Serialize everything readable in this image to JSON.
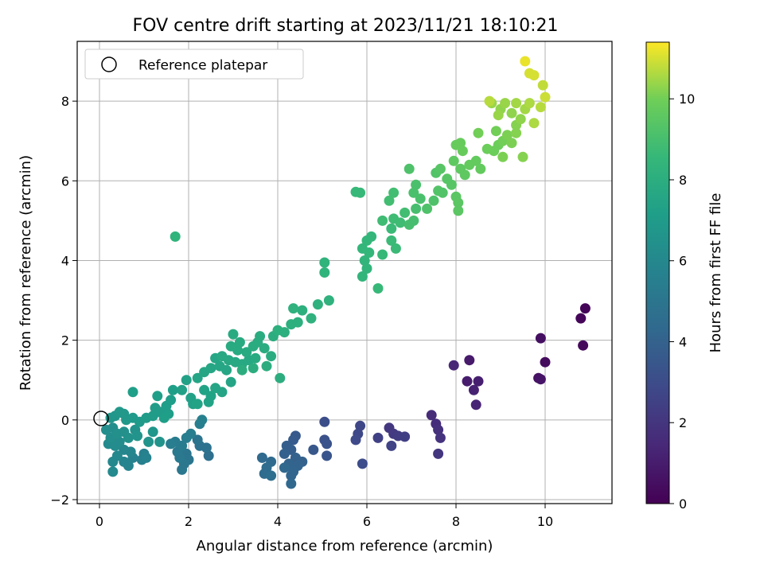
{
  "chart_data": {
    "type": "scatter",
    "title": "FOV centre drift starting at 2023/11/21 18:10:21",
    "xlabel": "Angular distance from reference (arcmin)",
    "ylabel": "Rotation from reference (arcmin)",
    "xlim": [
      -0.5,
      11.5
    ],
    "ylim": [
      -2.1,
      9.5
    ],
    "xticks": [
      "0",
      "2",
      "4",
      "6",
      "8",
      "10"
    ],
    "yticks": [
      "−2",
      "0",
      "2",
      "4",
      "6",
      "8"
    ],
    "grid": true,
    "legend": {
      "position": "top-left",
      "entries": [
        "Reference platepar"
      ]
    },
    "reference_point": {
      "x": 0,
      "y": 0
    },
    "colorbar": {
      "label": "Hours from first FF file",
      "range": [
        0,
        11.4
      ],
      "ticks": [
        "0",
        "2",
        "4",
        "6",
        "8",
        "10"
      ],
      "colormap": "viridis"
    },
    "series": [
      {
        "points": [
          [
            10.9,
            2.8,
            0.1
          ],
          [
            10.8,
            2.55,
            0.2
          ],
          [
            10.85,
            1.87,
            0.3
          ],
          [
            10.0,
            1.45,
            0.4
          ],
          [
            9.9,
            2.05,
            0.5
          ],
          [
            9.85,
            1.05,
            0.6
          ],
          [
            9.9,
            1.02,
            0.7
          ],
          [
            8.3,
            1.5,
            0.9
          ],
          [
            8.25,
            0.97,
            1.0
          ],
          [
            8.5,
            0.97,
            1.1
          ],
          [
            8.4,
            0.75,
            1.2
          ],
          [
            8.45,
            0.38,
            1.3
          ],
          [
            7.95,
            1.37,
            1.4
          ],
          [
            7.45,
            0.12,
            1.6
          ],
          [
            7.55,
            -0.1,
            1.7
          ],
          [
            7.6,
            -0.25,
            1.8
          ],
          [
            7.65,
            -0.45,
            1.9
          ],
          [
            7.6,
            -0.85,
            2.0
          ],
          [
            6.5,
            -0.2,
            2.1
          ],
          [
            6.6,
            -0.35,
            2.2
          ],
          [
            6.7,
            -0.4,
            2.3
          ],
          [
            6.85,
            -0.42,
            2.4
          ],
          [
            6.25,
            -0.45,
            2.5
          ],
          [
            6.55,
            -0.65,
            2.6
          ],
          [
            5.85,
            -0.15,
            2.7
          ],
          [
            5.8,
            -0.35,
            2.8
          ],
          [
            5.75,
            -0.5,
            2.9
          ],
          [
            5.9,
            -1.1,
            3.0
          ],
          [
            5.05,
            -0.05,
            3.1
          ],
          [
            5.05,
            -0.5,
            3.2
          ],
          [
            5.1,
            -0.6,
            3.3
          ],
          [
            5.1,
            -0.9,
            3.4
          ],
          [
            4.8,
            -0.75,
            3.5
          ],
          [
            4.4,
            -0.4,
            3.6
          ],
          [
            4.35,
            -0.5,
            3.7
          ],
          [
            4.2,
            -0.65,
            3.8
          ],
          [
            4.3,
            -0.75,
            3.8
          ],
          [
            4.15,
            -0.85,
            3.9
          ],
          [
            4.55,
            -1.05,
            4.0
          ],
          [
            4.4,
            -0.95,
            4.0
          ],
          [
            4.25,
            -1.1,
            4.1
          ],
          [
            4.45,
            -1.15,
            4.1
          ],
          [
            4.35,
            -1.3,
            4.2
          ],
          [
            4.3,
            -1.4,
            4.2
          ],
          [
            4.3,
            -1.6,
            4.3
          ],
          [
            4.15,
            -1.2,
            4.3
          ],
          [
            3.85,
            -1.05,
            4.4
          ],
          [
            3.65,
            -0.95,
            4.4
          ],
          [
            3.75,
            -1.2,
            4.5
          ],
          [
            3.7,
            -1.35,
            4.5
          ],
          [
            3.85,
            -1.4,
            4.6
          ],
          [
            2.45,
            -0.9,
            4.7
          ],
          [
            2.4,
            -0.7,
            4.8
          ],
          [
            2.25,
            -0.65,
            4.8
          ],
          [
            2.2,
            -0.5,
            4.9
          ],
          [
            1.95,
            -0.85,
            5.0
          ],
          [
            2.0,
            -1.0,
            5.0
          ],
          [
            1.9,
            -1.1,
            5.1
          ],
          [
            1.85,
            -1.25,
            5.1
          ],
          [
            1.8,
            -0.95,
            5.2
          ],
          [
            1.75,
            -0.8,
            5.2
          ],
          [
            1.85,
            -0.65,
            5.3
          ],
          [
            1.7,
            -0.55,
            5.3
          ],
          [
            1.6,
            -0.6,
            5.4
          ],
          [
            1.95,
            -0.45,
            5.4
          ],
          [
            2.05,
            -0.35,
            5.5
          ],
          [
            2.25,
            -0.1,
            5.5
          ],
          [
            2.3,
            0.0,
            5.6
          ],
          [
            1.0,
            -0.85,
            5.6
          ],
          [
            0.95,
            -1.0,
            5.6
          ],
          [
            1.05,
            -0.95,
            5.7
          ],
          [
            0.75,
            -0.95,
            5.7
          ],
          [
            0.65,
            -1.15,
            5.8
          ],
          [
            0.55,
            -1.05,
            5.8
          ],
          [
            0.7,
            -0.8,
            5.9
          ],
          [
            0.55,
            -0.75,
            5.9
          ],
          [
            0.4,
            -0.9,
            6.0
          ],
          [
            0.3,
            -1.05,
            6.0
          ],
          [
            0.3,
            -1.3,
            6.1
          ],
          [
            0.2,
            -0.6,
            6.1
          ],
          [
            0.35,
            -0.65,
            6.2
          ],
          [
            0.45,
            -0.55,
            6.2
          ],
          [
            0.25,
            -0.45,
            6.3
          ],
          [
            0.15,
            -0.25,
            6.3
          ],
          [
            0.3,
            -0.2,
            6.3
          ],
          [
            0.4,
            -0.35,
            6.4
          ],
          [
            0.55,
            -0.3,
            6.4
          ],
          [
            0.65,
            -0.45,
            6.5
          ],
          [
            0.8,
            -0.25,
            6.5
          ],
          [
            0.85,
            -0.4,
            6.6
          ],
          [
            1.1,
            -0.55,
            6.6
          ],
          [
            1.35,
            -0.55,
            6.6
          ],
          [
            1.2,
            -0.3,
            6.7
          ],
          [
            0.25,
            0.05,
            6.7
          ],
          [
            0.35,
            0.1,
            6.7
          ],
          [
            0.45,
            0.2,
            6.8
          ],
          [
            0.55,
            0.15,
            6.8
          ],
          [
            0.6,
            0.0,
            6.8
          ],
          [
            0.75,
            0.05,
            6.9
          ],
          [
            0.9,
            -0.05,
            6.9
          ],
          [
            1.05,
            0.05,
            7.0
          ],
          [
            1.2,
            0.1,
            7.0
          ],
          [
            1.25,
            0.3,
            7.0
          ],
          [
            1.35,
            0.2,
            7.0
          ],
          [
            1.5,
            0.35,
            7.1
          ],
          [
            1.6,
            0.5,
            7.1
          ],
          [
            1.55,
            0.15,
            7.1
          ],
          [
            1.45,
            0.05,
            7.2
          ],
          [
            1.3,
            0.6,
            7.2
          ],
          [
            0.75,
            0.7,
            7.2
          ],
          [
            1.65,
            0.75,
            7.2
          ],
          [
            1.85,
            0.75,
            7.3
          ],
          [
            1.95,
            1.0,
            7.3
          ],
          [
            2.05,
            0.55,
            7.3
          ],
          [
            2.1,
            0.4,
            7.3
          ],
          [
            2.2,
            0.4,
            7.4
          ],
          [
            2.35,
            0.75,
            7.4
          ],
          [
            2.5,
            0.6,
            7.4
          ],
          [
            2.45,
            0.45,
            7.4
          ],
          [
            2.6,
            0.8,
            7.5
          ],
          [
            2.75,
            0.7,
            7.5
          ],
          [
            2.95,
            0.95,
            7.5
          ],
          [
            2.2,
            1.05,
            7.5
          ],
          [
            2.35,
            1.2,
            7.6
          ],
          [
            2.5,
            1.3,
            7.6
          ],
          [
            2.7,
            1.35,
            7.6
          ],
          [
            2.85,
            1.25,
            7.6
          ],
          [
            2.6,
            1.55,
            7.6
          ],
          [
            2.75,
            1.6,
            7.7
          ],
          [
            2.9,
            1.5,
            7.7
          ],
          [
            3.05,
            1.45,
            7.7
          ],
          [
            3.2,
            1.4,
            7.7
          ],
          [
            3.35,
            1.5,
            7.7
          ],
          [
            3.5,
            1.55,
            7.8
          ],
          [
            3.3,
            1.7,
            7.8
          ],
          [
            3.1,
            1.75,
            7.8
          ],
          [
            2.95,
            1.85,
            7.8
          ],
          [
            3.15,
            1.95,
            7.8
          ],
          [
            3.0,
            2.15,
            7.8
          ],
          [
            3.45,
            1.85,
            7.9
          ],
          [
            3.55,
            1.95,
            7.9
          ],
          [
            3.7,
            1.8,
            7.9
          ],
          [
            3.6,
            2.1,
            7.9
          ],
          [
            3.85,
            1.6,
            7.9
          ],
          [
            3.45,
            1.3,
            8.0
          ],
          [
            3.2,
            1.25,
            8.0
          ],
          [
            3.75,
            1.35,
            8.0
          ],
          [
            4.05,
            1.05,
            8.0
          ],
          [
            3.9,
            2.1,
            8.0
          ],
          [
            4.0,
            2.25,
            8.1
          ],
          [
            4.15,
            2.2,
            8.1
          ],
          [
            4.3,
            2.4,
            8.1
          ],
          [
            4.45,
            2.45,
            8.1
          ],
          [
            4.55,
            2.75,
            8.1
          ],
          [
            4.35,
            2.8,
            8.2
          ],
          [
            4.75,
            2.55,
            8.2
          ],
          [
            4.9,
            2.9,
            8.2
          ],
          [
            5.15,
            3.0,
            8.2
          ],
          [
            5.05,
            3.7,
            8.3
          ],
          [
            5.05,
            3.95,
            8.3
          ],
          [
            1.7,
            4.6,
            8.3
          ],
          [
            5.9,
            3.6,
            8.4
          ],
          [
            6.0,
            3.8,
            8.4
          ],
          [
            5.95,
            4.0,
            8.4
          ],
          [
            6.05,
            4.2,
            8.5
          ],
          [
            5.9,
            4.3,
            8.5
          ],
          [
            6.0,
            4.5,
            8.5
          ],
          [
            6.1,
            4.6,
            8.5
          ],
          [
            6.25,
            3.3,
            8.6
          ],
          [
            6.35,
            4.15,
            8.6
          ],
          [
            5.75,
            5.72,
            8.6
          ],
          [
            5.85,
            5.7,
            8.6
          ],
          [
            6.55,
            4.5,
            8.7
          ],
          [
            6.65,
            4.3,
            8.7
          ],
          [
            6.55,
            4.8,
            8.7
          ],
          [
            6.35,
            5.0,
            8.8
          ],
          [
            6.6,
            5.05,
            8.8
          ],
          [
            6.75,
            4.95,
            8.8
          ],
          [
            6.85,
            5.2,
            8.9
          ],
          [
            6.5,
            5.5,
            8.9
          ],
          [
            6.6,
            5.7,
            8.9
          ],
          [
            6.95,
            4.9,
            9.0
          ],
          [
            7.05,
            5.0,
            9.0
          ],
          [
            7.1,
            5.3,
            9.0
          ],
          [
            7.2,
            5.55,
            9.1
          ],
          [
            7.1,
            5.9,
            9.1
          ],
          [
            7.05,
            5.7,
            9.1
          ],
          [
            6.95,
            6.3,
            9.2
          ],
          [
            7.35,
            5.3,
            9.2
          ],
          [
            7.5,
            5.5,
            9.2
          ],
          [
            7.6,
            5.75,
            9.3
          ],
          [
            7.7,
            5.7,
            9.3
          ],
          [
            7.55,
            6.2,
            9.3
          ],
          [
            7.65,
            6.3,
            9.4
          ],
          [
            7.8,
            6.05,
            9.4
          ],
          [
            7.9,
            5.9,
            9.4
          ],
          [
            8.0,
            5.6,
            9.5
          ],
          [
            8.05,
            5.45,
            9.5
          ],
          [
            8.05,
            5.25,
            9.5
          ],
          [
            7.95,
            6.5,
            9.6
          ],
          [
            8.1,
            6.3,
            9.6
          ],
          [
            8.2,
            6.15,
            9.6
          ],
          [
            8.3,
            6.4,
            9.7
          ],
          [
            8.45,
            6.5,
            9.7
          ],
          [
            8.55,
            6.3,
            9.7
          ],
          [
            8.15,
            6.75,
            9.8
          ],
          [
            8.0,
            6.9,
            9.8
          ],
          [
            8.1,
            6.95,
            9.8
          ],
          [
            8.7,
            6.8,
            9.9
          ],
          [
            8.85,
            6.75,
            9.9
          ],
          [
            8.95,
            6.9,
            9.9
          ],
          [
            8.5,
            7.2,
            10.0
          ],
          [
            8.9,
            7.25,
            10.0
          ],
          [
            9.05,
            7.0,
            10.0
          ],
          [
            9.15,
            7.15,
            10.1
          ],
          [
            9.25,
            6.95,
            10.1
          ],
          [
            9.05,
            6.6,
            10.1
          ],
          [
            9.35,
            7.2,
            10.2
          ],
          [
            9.5,
            6.6,
            10.2
          ],
          [
            9.35,
            7.4,
            10.2
          ],
          [
            9.45,
            7.55,
            10.3
          ],
          [
            9.25,
            7.7,
            10.3
          ],
          [
            9.0,
            7.8,
            10.3
          ],
          [
            8.8,
            7.95,
            10.4
          ],
          [
            9.1,
            7.95,
            10.4
          ],
          [
            8.95,
            7.65,
            10.4
          ],
          [
            9.35,
            7.95,
            10.5
          ],
          [
            9.55,
            7.8,
            10.5
          ],
          [
            9.65,
            7.95,
            10.6
          ],
          [
            9.75,
            7.45,
            10.6
          ],
          [
            9.9,
            7.85,
            10.7
          ],
          [
            8.75,
            8.0,
            10.7
          ],
          [
            9.95,
            8.4,
            10.8
          ],
          [
            10.0,
            8.1,
            10.9
          ],
          [
            9.75,
            8.65,
            11.0
          ],
          [
            9.65,
            8.7,
            11.0
          ],
          [
            9.55,
            9.0,
            11.2
          ]
        ]
      }
    ]
  }
}
